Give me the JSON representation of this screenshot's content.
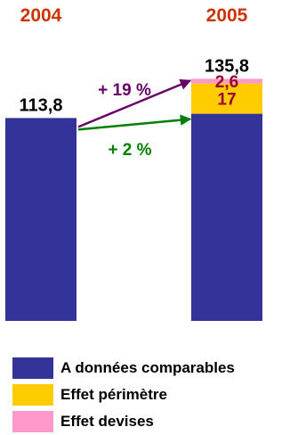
{
  "chart_data": {
    "type": "bar",
    "stacked": true,
    "categories": [
      "2004",
      "2005"
    ],
    "series": [
      {
        "name": "A données comparables",
        "values": [
          113.8,
          116.2
        ]
      },
      {
        "name": "Effet périmètre",
        "values": [
          0,
          17
        ]
      },
      {
        "name": "Effet devises",
        "values": [
          0,
          2.6
        ]
      }
    ],
    "totals": [
      "113,8",
      "135,8"
    ],
    "segment_labels": {
      "perimetre": "17",
      "devises": "2,6"
    },
    "growth_labels": [
      {
        "label": "+ 19 %",
        "color": "#660066"
      },
      {
        "label": "+ 2 %",
        "color": "#008000"
      }
    ],
    "ylim": [
      0,
      135.8
    ]
  },
  "colors": {
    "comparable": "#333399",
    "perimetre": "#ffcc00",
    "devises": "#ff99cc",
    "year_text": "#cc3300",
    "segment_text": "#990033"
  },
  "legend": [
    {
      "label": "A données comparables",
      "color": "#333399"
    },
    {
      "label": "Effet périmètre",
      "color": "#ffcc00"
    },
    {
      "label": "Effet devises",
      "color": "#ff99cc"
    }
  ]
}
